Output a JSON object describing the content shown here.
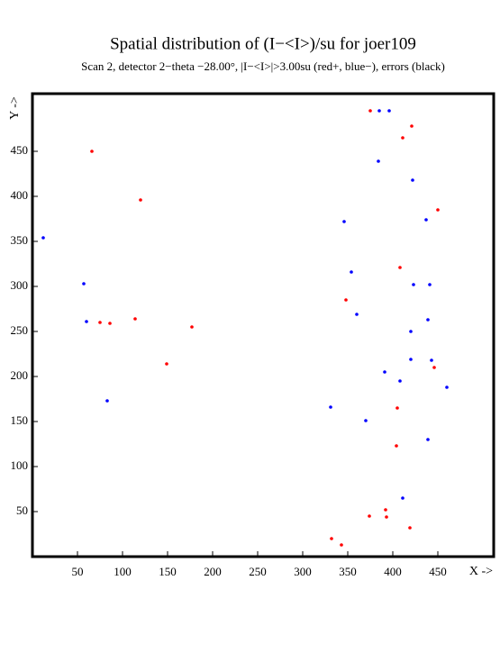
{
  "chart_data": {
    "type": "scatter",
    "title": "Spatial distribution of (I−<I>)/su for joer109",
    "subtitle": "Scan  2, detector 2−theta −28.00°, |I−<I>|>3.00su (red+, blue−), errors (black)",
    "x_label": "X ->",
    "y_label": "Y ->",
    "xlim": [
      0,
      512
    ],
    "ylim": [
      0,
      514
    ],
    "xticks": [
      50,
      100,
      150,
      200,
      250,
      300,
      350,
      400,
      450
    ],
    "yticks": [
      50,
      100,
      150,
      200,
      250,
      300,
      350,
      400,
      450
    ],
    "series": [
      {
        "color": "#ff0000",
        "x": [
          375,
          421,
          411,
          66,
          120,
          450,
          408,
          348,
          114,
          75,
          86,
          177,
          149,
          446,
          405,
          404,
          392,
          374,
          393,
          419,
          332,
          343
        ],
        "values": [
          495,
          478,
          465,
          450,
          396,
          385,
          321,
          285,
          264,
          260,
          259,
          255,
          214,
          210,
          165,
          123,
          52,
          45,
          44,
          32,
          20,
          13
        ]
      },
      {
        "color": "#0000ff",
        "x": [
          385,
          396,
          384,
          422,
          12,
          346,
          437,
          354,
          57,
          423,
          441,
          360,
          60,
          439,
          420,
          420,
          443,
          391,
          408,
          460,
          83,
          331,
          370,
          439,
          411
        ],
        "values": [
          495,
          495,
          439,
          418,
          354,
          372,
          374,
          316,
          303,
          302,
          302,
          269,
          261,
          263,
          250,
          219,
          218,
          205,
          195,
          188,
          173,
          166,
          151,
          130,
          65
        ]
      }
    ]
  }
}
